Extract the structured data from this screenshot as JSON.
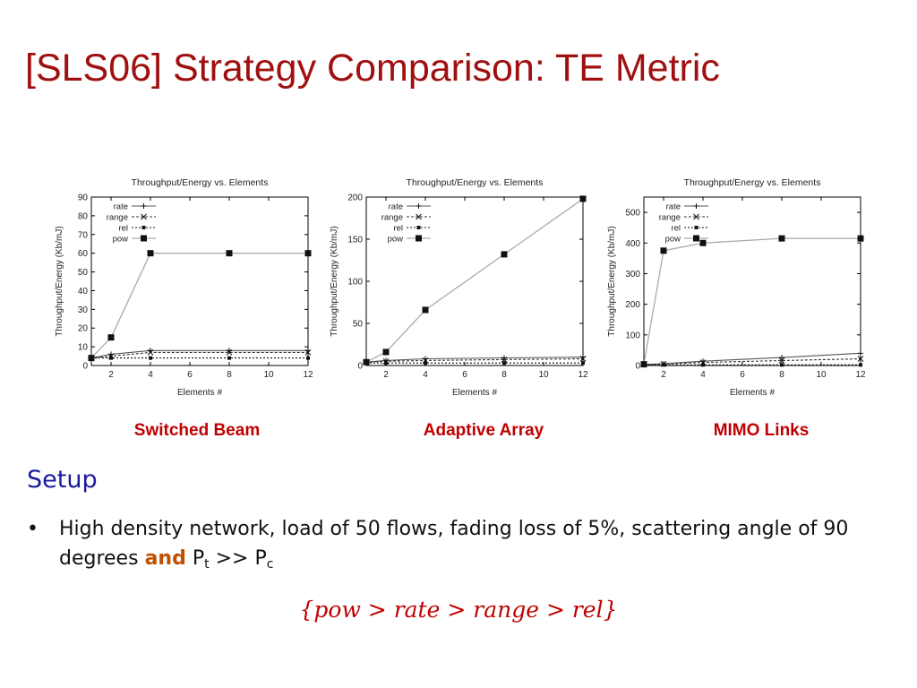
{
  "slide": {
    "title": "[SLS06] Strategy Comparison: TE Metric",
    "colors": {
      "title": "#a01010",
      "caption": "#c00000",
      "heading": "#1a1aa0",
      "emphasis": "#c05000",
      "formula": "#c00000"
    }
  },
  "chart_data": [
    {
      "type": "line",
      "title": "Throughput/Energy vs. Elements",
      "xlabel": "Elements #",
      "ylabel": "Throughput/Energy (Kb/mJ)",
      "x": [
        1,
        2,
        4,
        8,
        12
      ],
      "xticks": [
        2,
        4,
        6,
        8,
        10,
        12
      ],
      "xlim": [
        1,
        12
      ],
      "ylim": [
        0,
        90
      ],
      "yticks": [
        0,
        10,
        20,
        30,
        40,
        50,
        60,
        70,
        80,
        90
      ],
      "grid": false,
      "legend": "top-left",
      "series": [
        {
          "name": "rate",
          "marker": "plus",
          "values": [
            4,
            6,
            8,
            8,
            8
          ]
        },
        {
          "name": "range",
          "marker": "x",
          "values": [
            4,
            5,
            7,
            7,
            7
          ]
        },
        {
          "name": "rel",
          "marker": "square-small",
          "values": [
            4,
            4,
            4,
            4,
            4
          ]
        },
        {
          "name": "pow",
          "marker": "square",
          "values": [
            4,
            15,
            60,
            60,
            60
          ]
        }
      ],
      "caption": "Switched Beam"
    },
    {
      "type": "line",
      "title": "Throughput/Energy vs. Elements",
      "xlabel": "Elements #",
      "ylabel": "Throughput/Energy (Kb/mJ)",
      "x": [
        1,
        2,
        4,
        8,
        12
      ],
      "xticks": [
        2,
        4,
        6,
        8,
        10,
        12
      ],
      "xlim": [
        1,
        12
      ],
      "ylim": [
        0,
        200
      ],
      "yticks": [
        0,
        50,
        100,
        150,
        200
      ],
      "grid": false,
      "legend": "top-left",
      "series": [
        {
          "name": "rate",
          "marker": "plus",
          "values": [
            4,
            6,
            8,
            9,
            10
          ]
        },
        {
          "name": "range",
          "marker": "x",
          "values": [
            4,
            5,
            6,
            7,
            8
          ]
        },
        {
          "name": "rel",
          "marker": "square-small",
          "values": [
            3,
            3,
            3,
            3,
            3
          ]
        },
        {
          "name": "pow",
          "marker": "square",
          "values": [
            4,
            16,
            66,
            132,
            198
          ]
        }
      ],
      "caption": "Adaptive Array"
    },
    {
      "type": "line",
      "title": "Throughput/Energy vs. Elements",
      "xlabel": "Elements #",
      "ylabel": "Throughput/Energy (Kb/mJ)",
      "x": [
        1,
        2,
        4,
        8,
        12
      ],
      "xticks": [
        2,
        4,
        6,
        8,
        10,
        12
      ],
      "xlim": [
        1,
        12
      ],
      "ylim": [
        0,
        550
      ],
      "yticks": [
        0,
        100,
        200,
        300,
        400,
        500
      ],
      "grid": false,
      "legend": "top-left",
      "series": [
        {
          "name": "rate",
          "marker": "plus",
          "values": [
            3,
            6,
            14,
            26,
            40
          ]
        },
        {
          "name": "range",
          "marker": "x",
          "values": [
            3,
            5,
            10,
            16,
            22
          ]
        },
        {
          "name": "rel",
          "marker": "square-small",
          "values": [
            2,
            2,
            2,
            2,
            2
          ]
        },
        {
          "name": "pow",
          "marker": "square",
          "values": [
            4,
            375,
            400,
            415,
            415
          ]
        }
      ],
      "caption": "MIMO Links"
    }
  ],
  "setup": {
    "heading": "Setup",
    "bullet_symbol": "•",
    "bullet_text": "High density network, load of 50 flows, fading loss of 5%, scattering angle of 90 degrees",
    "and_word": "and",
    "p_symbol": "P",
    "pt_subscript": "t",
    "comparison": ">>",
    "pc_subscript": "c"
  },
  "formula": "{pow > rate > range > rel}"
}
